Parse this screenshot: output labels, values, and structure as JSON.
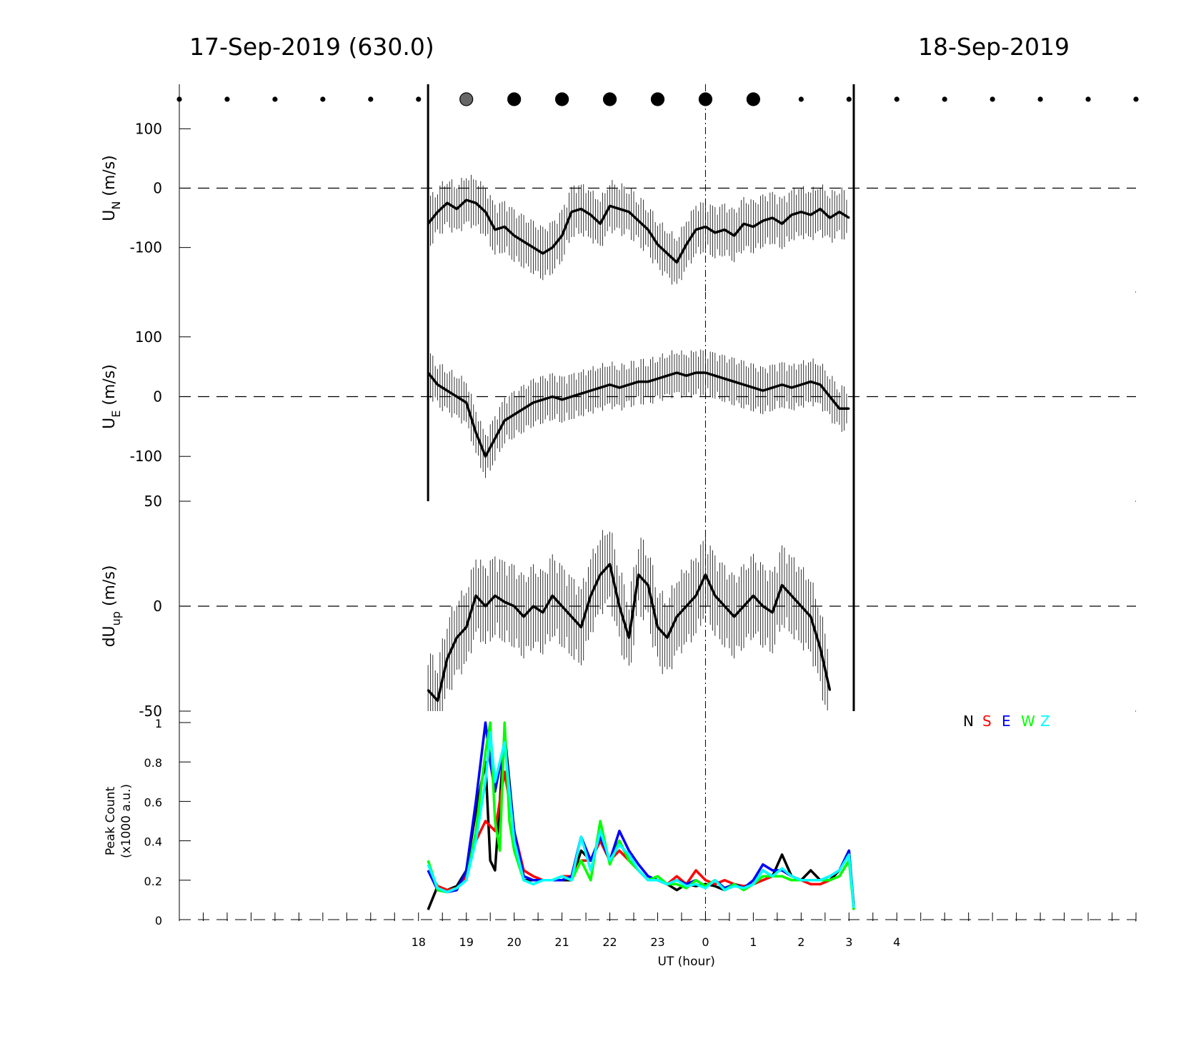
{
  "header": {
    "left_title": "17-Sep-2019 (630.0)",
    "right_title": "18-Sep-2019"
  },
  "chart_data": [
    {
      "type": "line",
      "panel": "UN",
      "ylabel": "U",
      "ylabel_sub": "N",
      "ylabel_unit": "(m/s)",
      "yticks": [
        {
          "v": 100,
          "label": "100"
        },
        {
          "v": 0,
          "label": "0"
        },
        {
          "v": -100,
          "label": "-100"
        }
      ],
      "ylim": [
        -175,
        175
      ],
      "zero_line": "dashed",
      "color": "#000000",
      "series": [
        {
          "x": [
            18.2,
            18.4,
            18.6,
            18.8,
            19.0,
            19.2,
            19.4,
            19.6,
            19.8,
            20.0,
            20.2,
            20.4,
            20.6,
            20.8,
            21.0,
            21.2,
            21.4,
            21.6,
            21.8,
            22.0,
            22.2,
            22.4,
            22.6,
            22.8,
            23.0,
            23.2,
            23.4,
            23.6,
            23.8,
            24.0,
            24.2,
            24.4,
            24.6,
            24.8,
            25.0,
            25.2,
            25.4,
            25.6,
            25.8,
            26.0,
            26.2,
            26.4,
            26.6,
            26.8,
            27.0
          ],
          "y": [
            -60,
            -40,
            -25,
            -35,
            -20,
            -25,
            -40,
            -70,
            -65,
            -80,
            -90,
            -100,
            -110,
            -100,
            -80,
            -40,
            -35,
            -45,
            -60,
            -30,
            -35,
            -40,
            -55,
            -70,
            -95,
            -110,
            -125,
            -95,
            -70,
            -65,
            -75,
            -70,
            -80,
            -60,
            -65,
            -55,
            -50,
            -60,
            -45,
            -40,
            -45,
            -35,
            -50,
            -40,
            -50
          ],
          "err": 45
        }
      ],
      "vlines": [
        18.2,
        27.1
      ]
    },
    {
      "type": "line",
      "panel": "UE",
      "ylabel": "U",
      "ylabel_sub": "E",
      "ylabel_unit": "(m/s)",
      "yticks": [
        {
          "v": 100,
          "label": "100"
        },
        {
          "v": 0,
          "label": "0"
        },
        {
          "v": -100,
          "label": "-100"
        }
      ],
      "ylim": [
        -175,
        175
      ],
      "zero_line": "dashed",
      "color": "#000000",
      "series": [
        {
          "x": [
            18.2,
            18.4,
            18.6,
            18.8,
            19.0,
            19.2,
            19.4,
            19.6,
            19.8,
            20.0,
            20.2,
            20.4,
            20.6,
            20.8,
            21.0,
            21.2,
            21.4,
            21.6,
            21.8,
            22.0,
            22.2,
            22.4,
            22.6,
            22.8,
            23.0,
            23.2,
            23.4,
            23.6,
            23.8,
            24.0,
            24.2,
            24.4,
            24.6,
            24.8,
            25.0,
            25.2,
            25.4,
            25.6,
            25.8,
            26.0,
            26.2,
            26.4,
            26.6,
            26.8,
            27.0
          ],
          "y": [
            40,
            20,
            10,
            0,
            -10,
            -60,
            -100,
            -70,
            -40,
            -30,
            -20,
            -10,
            -5,
            0,
            -5,
            0,
            5,
            10,
            15,
            20,
            15,
            20,
            25,
            25,
            30,
            35,
            40,
            35,
            40,
            40,
            35,
            30,
            25,
            20,
            15,
            10,
            15,
            20,
            15,
            20,
            25,
            20,
            0,
            -20,
            -20
          ],
          "err": 40
        }
      ],
      "vlines": [
        18.2,
        27.1
      ]
    },
    {
      "type": "line",
      "panel": "dUup",
      "ylabel": "dU",
      "ylabel_sub": "up",
      "ylabel_unit": "(m/s)",
      "yticks": [
        {
          "v": 50,
          "label": "50"
        },
        {
          "v": 0,
          "label": "0"
        },
        {
          "v": -50,
          "label": "-50"
        }
      ],
      "ylim": [
        -50,
        50
      ],
      "zero_line": "dashed",
      "color": "#000000",
      "series": [
        {
          "x": [
            18.2,
            18.4,
            18.6,
            18.8,
            19.0,
            19.2,
            19.4,
            19.6,
            19.8,
            20.0,
            20.2,
            20.4,
            20.6,
            20.8,
            21.0,
            21.2,
            21.4,
            21.6,
            21.8,
            22.0,
            22.2,
            22.4,
            22.6,
            22.8,
            23.0,
            23.2,
            23.4,
            23.6,
            23.8,
            24.0,
            24.2,
            24.4,
            24.6,
            24.8,
            25.0,
            25.2,
            25.4,
            25.6,
            25.8,
            26.0,
            26.2,
            26.4,
            26.6
          ],
          "y": [
            -40,
            -45,
            -25,
            -15,
            -10,
            5,
            0,
            5,
            2,
            0,
            -5,
            0,
            -3,
            5,
            0,
            -5,
            -10,
            5,
            15,
            20,
            0,
            -15,
            15,
            10,
            -10,
            -15,
            -5,
            0,
            5,
            15,
            5,
            0,
            -5,
            0,
            5,
            0,
            -3,
            10,
            5,
            0,
            -5,
            -20,
            -40
          ],
          "err": 20
        }
      ],
      "vlines": [
        27.1
      ]
    },
    {
      "type": "line",
      "panel": "PeakCount",
      "ylabel": "Peak Count",
      "ylabel2": "(x1000 a.u.)",
      "yticks": [
        {
          "v": 0,
          "label": "0"
        },
        {
          "v": 0.2,
          "label": "0.2"
        },
        {
          "v": 0.4,
          "label": "0.4"
        },
        {
          "v": 0.6,
          "label": "0.6"
        },
        {
          "v": 0.8,
          "label": "0.8"
        },
        {
          "v": 1,
          "label": "1"
        }
      ],
      "ylim": [
        0,
        1.05
      ],
      "legend_position": "top-right",
      "xlabel": "UT (hour)",
      "x_tick_hours": [
        18,
        19,
        20,
        21,
        22,
        23,
        24,
        25,
        26,
        27,
        28
      ],
      "x_tick_labels": [
        "18",
        "19",
        "20",
        "21",
        "22",
        "23",
        "0",
        "1",
        "2",
        "3",
        "4"
      ],
      "series": [
        {
          "name": "N",
          "color": "#000000",
          "x": [
            18.2,
            18.4,
            18.6,
            18.8,
            19.0,
            19.2,
            19.4,
            19.5,
            19.6,
            19.8,
            20.0,
            20.2,
            20.4,
            20.6,
            20.8,
            21.0,
            21.2,
            21.4,
            21.6,
            21.8,
            22.0,
            22.2,
            22.4,
            22.6,
            22.8,
            23.0,
            23.2,
            23.4,
            23.6,
            23.8,
            24.0,
            24.2,
            24.4,
            24.6,
            24.8,
            25.0,
            25.2,
            25.4,
            25.6,
            25.8,
            26.0,
            26.2,
            26.4,
            26.6,
            26.8,
            27.0,
            27.1
          ],
          "y": [
            0.05,
            0.17,
            0.15,
            0.17,
            0.25,
            0.55,
            0.8,
            0.3,
            0.25,
            0.95,
            0.45,
            0.2,
            0.2,
            0.2,
            0.2,
            0.2,
            0.2,
            0.35,
            0.3,
            0.4,
            0.3,
            0.4,
            0.3,
            0.25,
            0.2,
            0.2,
            0.18,
            0.15,
            0.18,
            0.17,
            0.18,
            0.17,
            0.15,
            0.18,
            0.16,
            0.18,
            0.25,
            0.22,
            0.33,
            0.22,
            0.2,
            0.25,
            0.2,
            0.2,
            0.25,
            0.35,
            0.05
          ]
        },
        {
          "name": "S",
          "color": "#ff0000",
          "x": [
            18.2,
            18.4,
            18.6,
            18.8,
            19.0,
            19.2,
            19.4,
            19.6,
            19.8,
            20.0,
            20.2,
            20.4,
            20.6,
            20.8,
            21.0,
            21.2,
            21.4,
            21.6,
            21.8,
            22.0,
            22.2,
            22.4,
            22.6,
            22.8,
            23.0,
            23.2,
            23.4,
            23.6,
            23.8,
            24.0,
            24.2,
            24.4,
            24.6,
            24.8,
            25.0,
            25.2,
            25.4,
            25.6,
            25.8,
            26.0,
            26.2,
            26.4,
            26.6,
            26.8,
            27.0,
            27.1
          ],
          "y": [
            0.25,
            0.17,
            0.15,
            0.16,
            0.22,
            0.4,
            0.5,
            0.45,
            0.75,
            0.45,
            0.25,
            0.22,
            0.2,
            0.2,
            0.22,
            0.22,
            0.3,
            0.3,
            0.4,
            0.3,
            0.35,
            0.3,
            0.25,
            0.2,
            0.2,
            0.18,
            0.22,
            0.18,
            0.25,
            0.2,
            0.18,
            0.2,
            0.18,
            0.17,
            0.18,
            0.2,
            0.22,
            0.22,
            0.2,
            0.2,
            0.18,
            0.18,
            0.2,
            0.22,
            0.3,
            0.08
          ]
        },
        {
          "name": "E",
          "color": "#0000ff",
          "x": [
            18.2,
            18.4,
            18.6,
            18.8,
            19.0,
            19.2,
            19.4,
            19.5,
            19.6,
            19.8,
            20.0,
            20.2,
            20.4,
            20.6,
            20.8,
            21.0,
            21.2,
            21.4,
            21.6,
            21.8,
            22.0,
            22.2,
            22.4,
            22.6,
            22.8,
            23.0,
            23.2,
            23.4,
            23.6,
            23.8,
            24.0,
            24.2,
            24.4,
            24.6,
            24.8,
            25.0,
            25.2,
            25.4,
            25.6,
            25.8,
            26.0,
            26.2,
            26.4,
            26.6,
            26.8,
            27.0,
            27.1
          ],
          "y": [
            0.25,
            0.15,
            0.14,
            0.15,
            0.25,
            0.6,
            1.0,
            0.8,
            0.65,
            0.9,
            0.45,
            0.22,
            0.2,
            0.2,
            0.2,
            0.2,
            0.22,
            0.42,
            0.3,
            0.42,
            0.3,
            0.45,
            0.35,
            0.28,
            0.22,
            0.2,
            0.18,
            0.2,
            0.18,
            0.2,
            0.17,
            0.2,
            0.16,
            0.18,
            0.16,
            0.2,
            0.28,
            0.25,
            0.25,
            0.22,
            0.2,
            0.2,
            0.2,
            0.22,
            0.25,
            0.35,
            0.07
          ]
        },
        {
          "name": "W",
          "color": "#00ff00",
          "x": [
            18.2,
            18.4,
            18.6,
            18.8,
            19.0,
            19.2,
            19.4,
            19.5,
            19.6,
            19.7,
            19.8,
            19.9,
            20.0,
            20.2,
            20.4,
            20.6,
            20.8,
            21.0,
            21.2,
            21.4,
            21.6,
            21.8,
            22.0,
            22.2,
            22.4,
            22.6,
            22.8,
            23.0,
            23.2,
            23.4,
            23.6,
            23.8,
            24.0,
            24.2,
            24.4,
            24.6,
            24.8,
            25.0,
            25.2,
            25.4,
            25.6,
            25.8,
            26.0,
            26.2,
            26.4,
            26.6,
            26.8,
            27.0,
            27.1
          ],
          "y": [
            0.3,
            0.15,
            0.14,
            0.16,
            0.2,
            0.45,
            0.85,
            1.0,
            0.5,
            0.35,
            1.0,
            0.5,
            0.35,
            0.2,
            0.18,
            0.2,
            0.2,
            0.22,
            0.2,
            0.3,
            0.2,
            0.5,
            0.28,
            0.4,
            0.3,
            0.25,
            0.2,
            0.22,
            0.18,
            0.18,
            0.16,
            0.2,
            0.17,
            0.2,
            0.15,
            0.18,
            0.15,
            0.18,
            0.22,
            0.22,
            0.22,
            0.2,
            0.2,
            0.2,
            0.2,
            0.2,
            0.22,
            0.3,
            0.05
          ]
        },
        {
          "name": "Z",
          "color": "#00ffff",
          "x": [
            18.2,
            18.4,
            18.6,
            18.8,
            19.0,
            19.2,
            19.4,
            19.5,
            19.6,
            19.8,
            20.0,
            20.2,
            20.4,
            20.6,
            20.8,
            21.0,
            21.2,
            21.4,
            21.6,
            21.8,
            22.0,
            22.2,
            22.4,
            22.6,
            22.8,
            23.0,
            23.2,
            23.4,
            23.6,
            23.8,
            24.0,
            24.2,
            24.4,
            24.6,
            24.8,
            25.0,
            25.2,
            25.4,
            25.6,
            25.8,
            26.0,
            26.2,
            26.4,
            26.6,
            26.8,
            27.0,
            27.1
          ],
          "y": [
            0.28,
            0.16,
            0.14,
            0.16,
            0.2,
            0.4,
            0.7,
            0.95,
            0.7,
            0.9,
            0.4,
            0.2,
            0.18,
            0.2,
            0.2,
            0.22,
            0.2,
            0.42,
            0.25,
            0.45,
            0.3,
            0.38,
            0.33,
            0.25,
            0.2,
            0.2,
            0.18,
            0.2,
            0.17,
            0.18,
            0.16,
            0.2,
            0.15,
            0.17,
            0.16,
            0.18,
            0.25,
            0.22,
            0.26,
            0.22,
            0.2,
            0.2,
            0.2,
            0.22,
            0.25,
            0.33,
            0.06
          ]
        }
      ]
    }
  ],
  "sky_dots": {
    "hours": [
      13,
      14,
      15,
      16,
      17,
      18,
      19,
      20,
      21,
      22,
      23,
      24,
      25,
      26,
      27,
      28,
      29,
      30,
      31,
      32,
      33
    ],
    "kind": [
      "small",
      "small",
      "small",
      "small",
      "small",
      "small",
      "gray",
      "big",
      "big",
      "big",
      "big",
      "big",
      "big",
      "small",
      "small",
      "small",
      "small",
      "small",
      "small",
      "small",
      "small"
    ]
  },
  "midnight_hour": 24
}
